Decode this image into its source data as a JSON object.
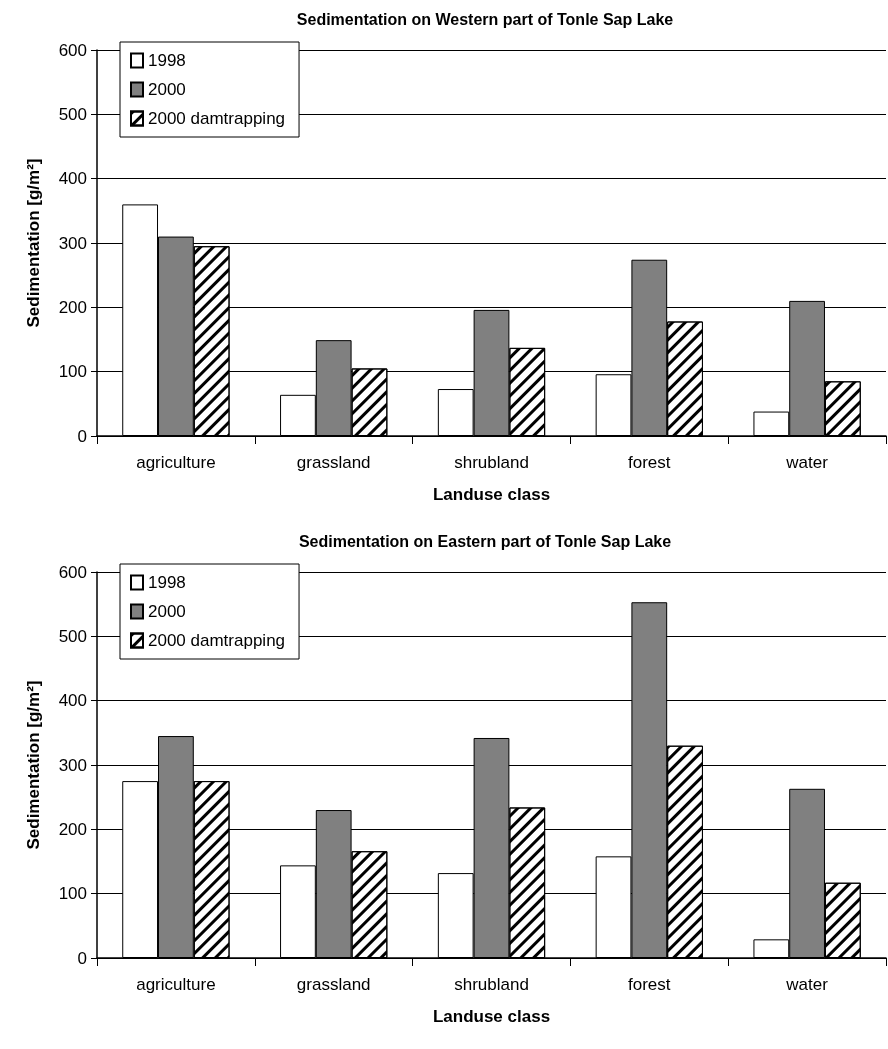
{
  "chart_data": [
    {
      "type": "bar",
      "title": "Sedimentation on Western part of Tonle Sap Lake",
      "xlabel": "Landuse class",
      "ylabel": "Sedimentation [g/m²]",
      "categories": [
        "agriculture",
        "grassland",
        "shrubland",
        "forest",
        "water"
      ],
      "series": [
        {
          "name": "1998",
          "color": "#ffffff",
          "values": [
            360,
            64,
            73,
            96,
            38
          ]
        },
        {
          "name": "2000",
          "color": "#808080",
          "values": [
            310,
            149,
            196,
            274,
            210
          ]
        },
        {
          "name": "2000 damtrapping",
          "color": "#ffffff",
          "values": [
            295,
            105,
            137,
            178,
            85
          ]
        }
      ],
      "ylim": [
        0,
        600
      ],
      "yticks": [
        0,
        100,
        200,
        300,
        400,
        500,
        600
      ],
      "grid": "y",
      "legend": "top left"
    },
    {
      "type": "bar",
      "title": "Sedimentation on Eastern part of Tonle Sap Lake",
      "xlabel": "Landuse class",
      "ylabel": "Sedimentation [g/m²]",
      "categories": [
        "agriculture",
        "grassland",
        "shrubland",
        "forest",
        "water"
      ],
      "series": [
        {
          "name": "1998",
          "color": "#ffffff",
          "values": [
            275,
            144,
            132,
            158,
            29
          ]
        },
        {
          "name": "2000",
          "color": "#808080",
          "values": [
            345,
            230,
            342,
            553,
            263
          ]
        },
        {
          "name": "2000 damtrapping",
          "color": "#ffffff",
          "values": [
            275,
            166,
            234,
            330,
            117
          ]
        }
      ],
      "ylim": [
        0,
        600
      ],
      "yticks": [
        0,
        100,
        200,
        300,
        400,
        500,
        600
      ],
      "grid": "y",
      "legend": "top left"
    }
  ]
}
